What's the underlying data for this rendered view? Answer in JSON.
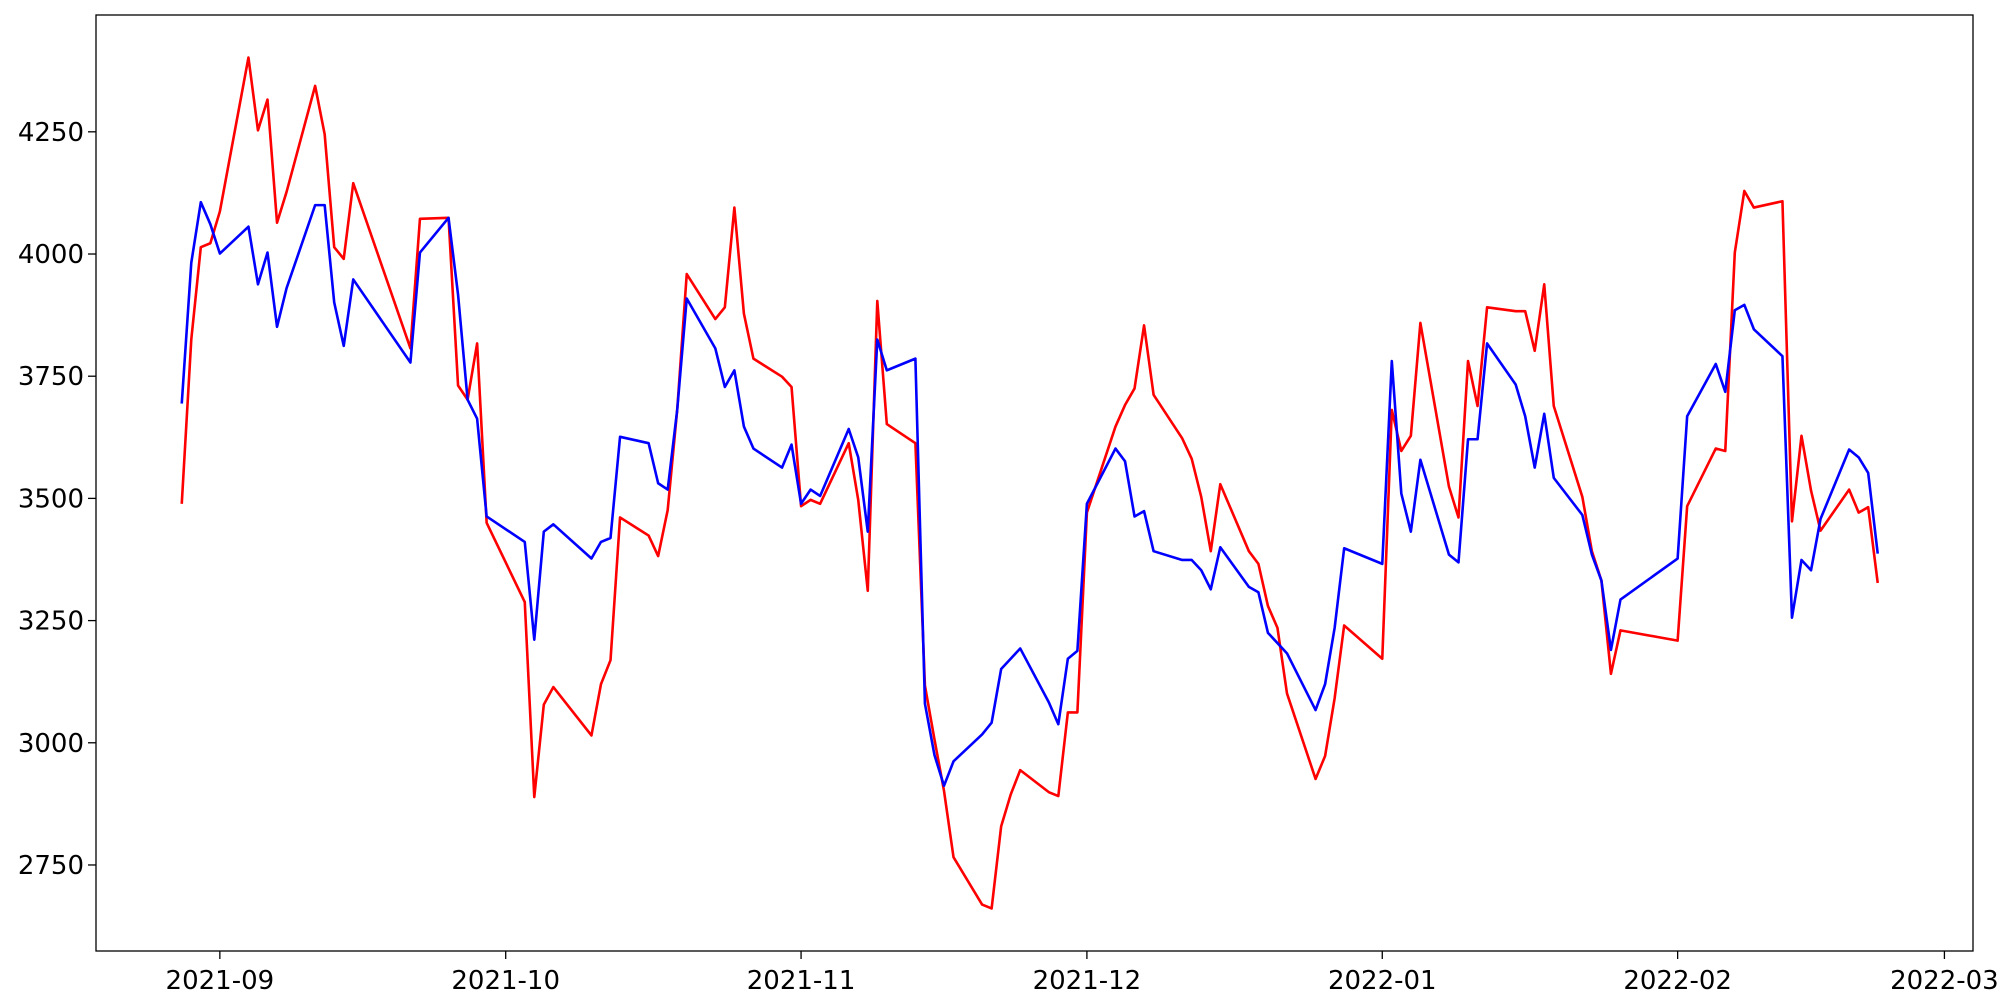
{
  "chart_data": {
    "type": "line",
    "x": [
      "2021-08-28",
      "2021-08-29",
      "2021-08-30",
      "2021-08-31",
      "2021-09-01",
      "2021-09-04",
      "2021-09-05",
      "2021-09-06",
      "2021-09-07",
      "2021-09-08",
      "2021-09-11",
      "2021-09-12",
      "2021-09-13",
      "2021-09-14",
      "2021-09-15",
      "2021-09-21",
      "2021-09-22",
      "2021-09-25",
      "2021-09-26",
      "2021-09-27",
      "2021-09-28",
      "2021-09-29",
      "2021-10-03",
      "2021-10-04",
      "2021-10-05",
      "2021-10-06",
      "2021-10-10",
      "2021-10-11",
      "2021-10-12",
      "2021-10-13",
      "2021-10-16",
      "2021-10-17",
      "2021-10-18",
      "2021-10-19",
      "2021-10-20",
      "2021-10-23",
      "2021-10-24",
      "2021-10-25",
      "2021-10-26",
      "2021-10-27",
      "2021-10-30",
      "2021-10-31",
      "2021-11-01",
      "2021-11-02",
      "2021-11-03",
      "2021-11-06",
      "2021-11-07",
      "2021-11-08",
      "2021-11-09",
      "2021-11-10",
      "2021-11-13",
      "2021-11-14",
      "2021-11-15",
      "2021-11-16",
      "2021-11-17",
      "2021-11-20",
      "2021-11-21",
      "2021-11-22",
      "2021-11-23",
      "2021-11-24",
      "2021-11-27",
      "2021-11-28",
      "2021-11-29",
      "2021-11-30",
      "2021-12-01",
      "2021-12-04",
      "2021-12-05",
      "2021-12-06",
      "2021-12-07",
      "2021-12-08",
      "2021-12-11",
      "2021-12-12",
      "2021-12-13",
      "2021-12-14",
      "2021-12-15",
      "2021-12-18",
      "2021-12-19",
      "2021-12-20",
      "2021-12-21",
      "2021-12-22",
      "2021-12-25",
      "2021-12-26",
      "2021-12-27",
      "2021-12-28",
      "2022-01-01",
      "2022-01-02",
      "2022-01-03",
      "2022-01-04",
      "2022-01-05",
      "2022-01-08",
      "2022-01-09",
      "2022-01-10",
      "2022-01-11",
      "2022-01-12",
      "2022-01-15",
      "2022-01-16",
      "2022-01-17",
      "2022-01-18",
      "2022-01-19",
      "2022-01-22",
      "2022-01-23",
      "2022-01-24",
      "2022-01-25",
      "2022-01-26",
      "2022-02-01",
      "2022-02-02",
      "2022-02-05",
      "2022-02-06",
      "2022-02-07",
      "2022-02-08",
      "2022-02-09",
      "2022-02-12",
      "2022-02-13",
      "2022-02-14",
      "2022-02-15",
      "2022-02-16",
      "2022-02-19",
      "2022-02-20",
      "2022-02-21",
      "2022-02-22"
    ],
    "series": [
      {
        "color": "#ff0000",
        "values": [
          3489,
          3825,
          4014,
          4022,
          4087,
          4402,
          4253,
          4316,
          4064,
          4127,
          4344,
          4245,
          4014,
          3990,
          4145,
          3807,
          4072,
          4074,
          3731,
          3702,
          3817,
          3450,
          3288,
          2889,
          3078,
          3114,
          3015,
          3120,
          3169,
          3461,
          3424,
          3382,
          3476,
          3681,
          3959,
          3867,
          3891,
          4095,
          3878,
          3786,
          3749,
          3728,
          3484,
          3497,
          3489,
          3613,
          3497,
          3311,
          3904,
          3652,
          3613,
          3117,
          3007,
          2902,
          2766,
          2669,
          2661,
          2829,
          2894,
          2944,
          2899,
          2891,
          3062,
          3062,
          3471,
          3647,
          3691,
          3725,
          3854,
          3712,
          3623,
          3581,
          3503,
          3392,
          3529,
          3392,
          3366,
          3280,
          3235,
          3101,
          2926,
          2973,
          3091,
          3240,
          3172,
          3681,
          3597,
          3628,
          3859,
          3524,
          3461,
          3781,
          3689,
          3891,
          3883,
          3883,
          3802,
          3938,
          3689,
          3503,
          3392,
          3332,
          3141,
          3230,
          3209,
          3484,
          3602,
          3597,
          4003,
          4129,
          4095,
          4108,
          3453,
          3628,
          3516,
          3434,
          3518,
          3471,
          3482,
          3327
        ]
      },
      {
        "color": "#0000ff",
        "values": [
          3694,
          3982,
          4106,
          4061,
          4001,
          4056,
          3938,
          4003,
          3851,
          3930,
          4100,
          4100,
          3901,
          3812,
          3948,
          3778,
          4003,
          4074,
          3917,
          3702,
          3663,
          3463,
          3411,
          3211,
          3432,
          3447,
          3377,
          3411,
          3419,
          3626,
          3613,
          3531,
          3518,
          3681,
          3909,
          3807,
          3728,
          3762,
          3647,
          3602,
          3563,
          3610,
          3489,
          3518,
          3505,
          3642,
          3584,
          3432,
          3825,
          3762,
          3786,
          3080,
          2975,
          2912,
          2962,
          3017,
          3041,
          3151,
          3172,
          3193,
          3083,
          3038,
          3172,
          3188,
          3489,
          3602,
          3576,
          3463,
          3474,
          3392,
          3374,
          3374,
          3353,
          3314,
          3400,
          3319,
          3308,
          3225,
          3204,
          3183,
          3067,
          3120,
          3235,
          3398,
          3366,
          3781,
          3510,
          3432,
          3579,
          3385,
          3369,
          3621,
          3621,
          3817,
          3733,
          3668,
          3563,
          3673,
          3542,
          3466,
          3385,
          3332,
          3190,
          3293,
          3377,
          3668,
          3775,
          3718,
          3885,
          3896,
          3846,
          3791,
          3256,
          3374,
          3353,
          3458,
          3600,
          3584,
          3552,
          3387
        ]
      }
    ],
    "xlim": [
      "2021-08-19",
      "2022-03-04"
    ],
    "xticks": [
      {
        "value": "2021-09-01",
        "label": "2021-09"
      },
      {
        "value": "2021-10-01",
        "label": "2021-10"
      },
      {
        "value": "2021-11-01",
        "label": "2021-11"
      },
      {
        "value": "2021-12-01",
        "label": "2021-12"
      },
      {
        "value": "2022-01-01",
        "label": "2022-01"
      },
      {
        "value": "2022-02-01",
        "label": "2022-02"
      },
      {
        "value": "2022-03-01",
        "label": "2022-03"
      }
    ],
    "ylim": [
      2574,
      4489
    ],
    "yticks": [
      2750,
      3000,
      3250,
      3500,
      3750,
      4000,
      4250
    ],
    "grid": false
  }
}
